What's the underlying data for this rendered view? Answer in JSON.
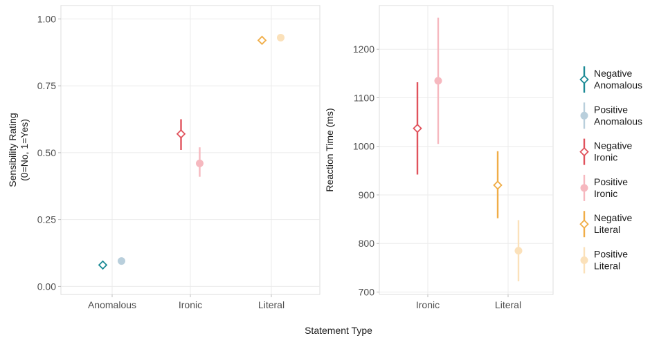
{
  "shared_xlabel": "Statement Type",
  "legend": [
    {
      "line1": "Negative",
      "line2": "Anomalous",
      "color": "#1b8a95",
      "shape": "diamond",
      "opacity": 1
    },
    {
      "line1": "Positive",
      "line2": "Anomalous",
      "color": "#b9cfdc",
      "shape": "circle",
      "opacity": 1
    },
    {
      "line1": "Negative",
      "line2": "Ironic",
      "color": "#e0525c",
      "shape": "diamond",
      "opacity": 1
    },
    {
      "line1": "Positive",
      "line2": "Ironic",
      "color": "#f6b8bf",
      "shape": "circle",
      "opacity": 1
    },
    {
      "line1": "Negative",
      "line2": "Literal",
      "color": "#f0ad47",
      "shape": "diamond",
      "opacity": 1
    },
    {
      "line1": "Positive",
      "line2": "Literal",
      "color": "#fbe1ba",
      "shape": "circle",
      "opacity": 1
    }
  ],
  "chart_data": [
    {
      "type": "scatter",
      "title": "",
      "xlabel": "",
      "ylabel": "Sensibility Rating (0=No, 1=Yes)",
      "ylabel_lines": [
        "Sensibility Rating",
        "(0=No, 1=Yes)"
      ],
      "categories": [
        "Anomalous",
        "Ironic",
        "Literal"
      ],
      "ylim": [
        -0.03,
        1.05
      ],
      "yticks": [
        0.0,
        0.25,
        0.5,
        0.75,
        1.0
      ],
      "ytick_labels": [
        "0.00",
        "0.25",
        "0.50",
        "0.75",
        "1.00"
      ],
      "grid": true,
      "series": [
        {
          "name": "Negative Anomalous",
          "category": "Anomalous",
          "valence": "Negative",
          "y": 0.08,
          "ymin": 0.075,
          "ymax": 0.085
        },
        {
          "name": "Positive Anomalous",
          "category": "Anomalous",
          "valence": "Positive",
          "y": 0.095,
          "ymin": 0.085,
          "ymax": 0.105
        },
        {
          "name": "Negative Ironic",
          "category": "Ironic",
          "valence": "Negative",
          "y": 0.57,
          "ymin": 0.51,
          "ymax": 0.625
        },
        {
          "name": "Positive Ironic",
          "category": "Ironic",
          "valence": "Positive",
          "y": 0.46,
          "ymin": 0.41,
          "ymax": 0.52
        },
        {
          "name": "Negative Literal",
          "category": "Literal",
          "valence": "Negative",
          "y": 0.92,
          "ymin": 0.91,
          "ymax": 0.93
        },
        {
          "name": "Positive Literal",
          "category": "Literal",
          "valence": "Positive",
          "y": 0.93,
          "ymin": 0.92,
          "ymax": 0.94
        }
      ]
    },
    {
      "type": "scatter",
      "title": "",
      "xlabel": "",
      "ylabel": "Reaction Time (ms)",
      "ylabel_lines": [
        "Reaction Time (ms)"
      ],
      "categories": [
        "Ironic",
        "Literal"
      ],
      "ylim": [
        695,
        1290
      ],
      "yticks": [
        700,
        800,
        900,
        1000,
        1100,
        1200
      ],
      "ytick_labels": [
        "700",
        "800",
        "900",
        "1000",
        "1100",
        "1200"
      ],
      "grid": true,
      "series": [
        {
          "name": "Negative Ironic",
          "category": "Ironic",
          "valence": "Negative",
          "y": 1037,
          "ymin": 942,
          "ymax": 1132
        },
        {
          "name": "Positive Ironic",
          "category": "Ironic",
          "valence": "Positive",
          "y": 1135,
          "ymin": 1005,
          "ymax": 1265
        },
        {
          "name": "Negative Literal",
          "category": "Literal",
          "valence": "Negative",
          "y": 920,
          "ymin": 852,
          "ymax": 990
        },
        {
          "name": "Positive Literal",
          "category": "Literal",
          "valence": "Positive",
          "y": 785,
          "ymin": 722,
          "ymax": 848
        }
      ]
    }
  ]
}
